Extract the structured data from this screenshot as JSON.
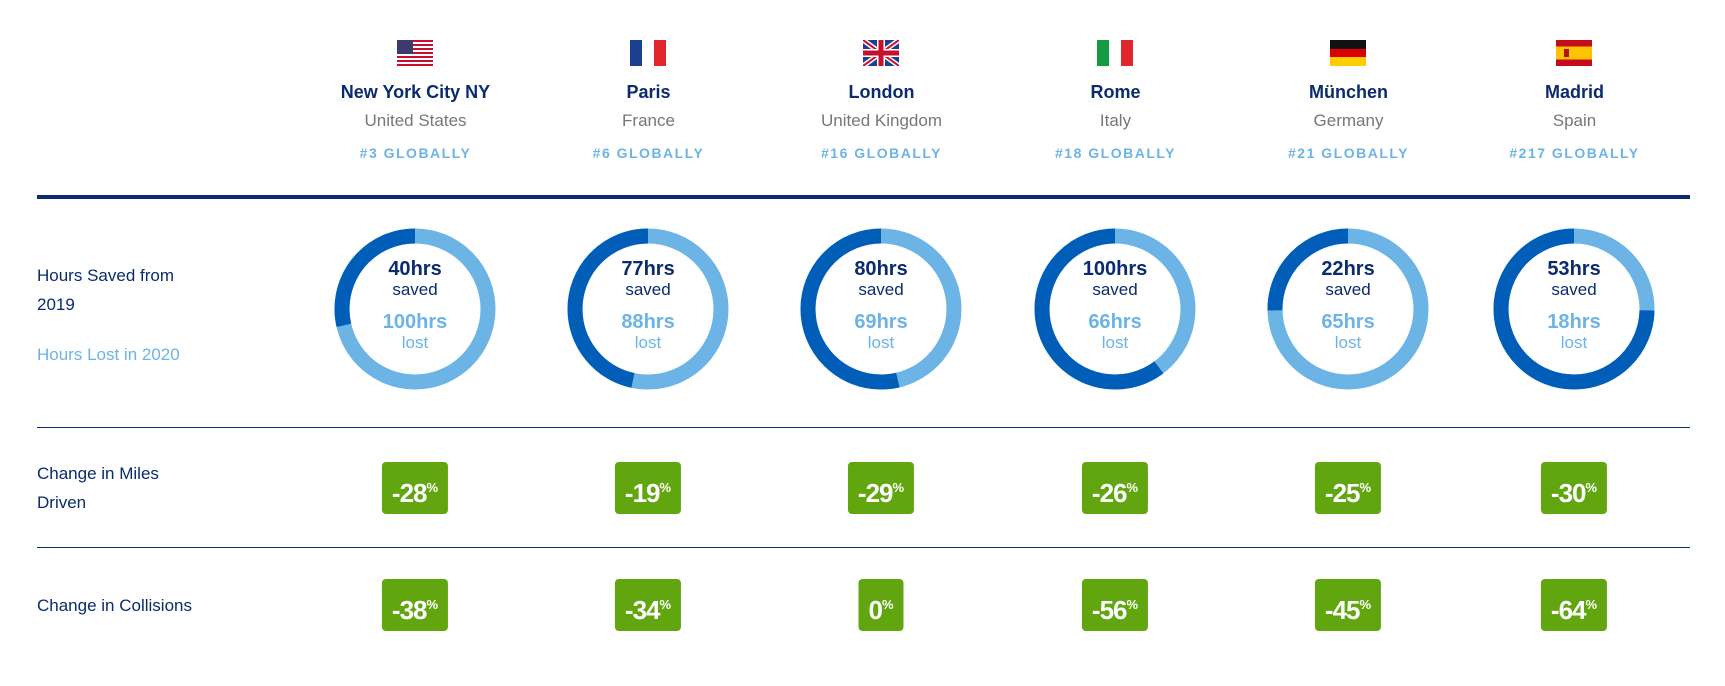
{
  "colors": {
    "navy": "#0a2b6e",
    "saved": "#005eb8",
    "lost": "#6cb4e6",
    "badge": "#62a60f",
    "country": "#777777"
  },
  "row_labels": {
    "hours_saved": "Hours Saved from 2019",
    "hours_lost": "Hours Lost in 2020",
    "miles": "Change in Miles Driven",
    "collisions": "Change in Collisions"
  },
  "units": {
    "hrs": "hrs",
    "saved": "saved",
    "lost": "lost",
    "pct": "%"
  },
  "cities": [
    {
      "flag": "us-flag-icon",
      "city": "New York City NY",
      "country": "United States",
      "rank": "#3 GLOBALLY",
      "saved": 40,
      "lost": 100,
      "miles": "-28",
      "collisions": "-38"
    },
    {
      "flag": "france-flag-icon",
      "city": "Paris",
      "country": "France",
      "rank": "#6 GLOBALLY",
      "saved": 77,
      "lost": 88,
      "miles": "-19",
      "collisions": "-34"
    },
    {
      "flag": "uk-flag-icon",
      "city": "London",
      "country": "United Kingdom",
      "rank": "#16 GLOBALLY",
      "saved": 80,
      "lost": 69,
      "miles": "-29",
      "collisions": "0"
    },
    {
      "flag": "italy-flag-icon",
      "city": "Rome",
      "country": "Italy",
      "rank": "#18 GLOBALLY",
      "saved": 100,
      "lost": 66,
      "miles": "-26",
      "collisions": "-56"
    },
    {
      "flag": "germany-flag-icon",
      "city": "München",
      "country": "Germany",
      "rank": "#21 GLOBALLY",
      "saved": 22,
      "lost": 65,
      "miles": "-25",
      "collisions": "-45"
    },
    {
      "flag": "spain-flag-icon",
      "city": "Madrid",
      "country": "Spain",
      "rank": "#217 GLOBALLY",
      "saved": 53,
      "lost": 18,
      "miles": "-30",
      "collisions": "-64"
    }
  ]
}
